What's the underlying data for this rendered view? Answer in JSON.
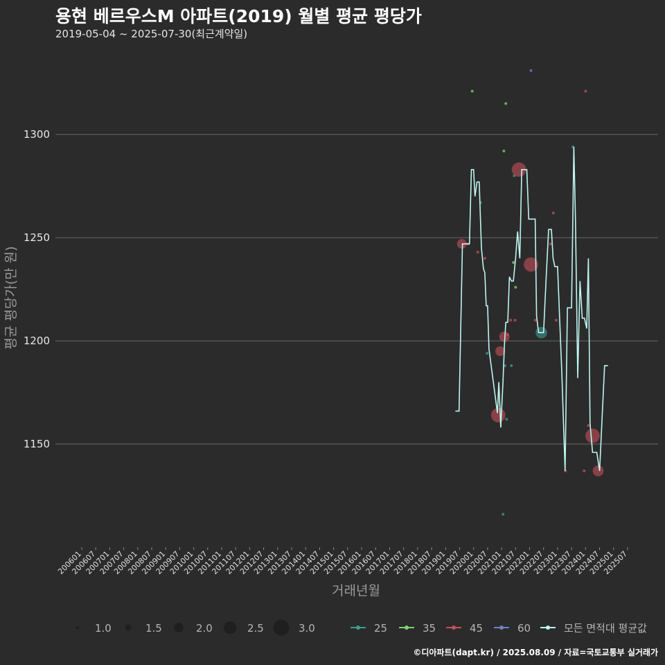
{
  "title": "용현 베르우스M 아파트(2019) 월별 평균 평당가",
  "subtitle": "2019-05-04 ~ 2025-07-30(최근계약일)",
  "footer": "©디아파트(dapt.kr) / 2025.08.09 / 자료=국토교통부 실거래가",
  "colors": {
    "background": "#2b2b2b",
    "grid": "#6a6a6a",
    "avg_line": "#bff5f0",
    "s25": "#3d9c94",
    "s35": "#7ed36f",
    "s45": "#c5505a",
    "s60": "#6f82c0"
  },
  "chart_data": {
    "type": "line+scatter",
    "title": "용현 베르우스M 아파트(2019) 월별 평균 평당가",
    "xlabel": "거래년월",
    "ylabel": "평균 평당가(만 원)",
    "ylim": [
      1100,
      1340
    ],
    "y_ticks": [
      1150,
      1200,
      1250,
      1300
    ],
    "x_range": [
      2006.0,
      2025.6
    ],
    "x_tick_labels": [
      "200601",
      "200607",
      "200701",
      "200707",
      "200801",
      "200807",
      "200901",
      "200907",
      "201001",
      "201007",
      "201101",
      "201107",
      "201201",
      "201207",
      "201301",
      "201307",
      "201401",
      "201407",
      "201501",
      "201507",
      "201601",
      "201607",
      "201701",
      "201707",
      "201801",
      "201807",
      "201901",
      "201907",
      "202001",
      "202007",
      "202101",
      "202107",
      "202201",
      "202207",
      "202301",
      "202307",
      "202401",
      "202407",
      "202501",
      "202507"
    ],
    "size_legend": [
      {
        "label": "1.0",
        "value": 1.0
      },
      {
        "label": "1.5",
        "value": 1.5
      },
      {
        "label": "2.0",
        "value": 2.0
      },
      {
        "label": "2.5",
        "value": 2.5
      },
      {
        "label": "3.0",
        "value": 3.0
      }
    ],
    "color_legend": [
      {
        "label": "25",
        "key": "s25"
      },
      {
        "label": "35",
        "key": "s35"
      },
      {
        "label": "45",
        "key": "s45"
      },
      {
        "label": "60",
        "key": "s60"
      },
      {
        "label": "모든 면적대 평균값",
        "key": "avg_line"
      }
    ],
    "avg_line": [
      [
        2019.35,
        1166
      ],
      [
        2019.48,
        1166
      ],
      [
        2019.6,
        1247
      ],
      [
        2019.85,
        1247
      ],
      [
        2019.92,
        1283
      ],
      [
        2020.0,
        1283
      ],
      [
        2020.05,
        1270
      ],
      [
        2020.12,
        1277
      ],
      [
        2020.2,
        1277
      ],
      [
        2020.28,
        1245
      ],
      [
        2020.35,
        1235
      ],
      [
        2020.4,
        1233
      ],
      [
        2020.45,
        1217
      ],
      [
        2020.5,
        1217
      ],
      [
        2020.55,
        1196
      ],
      [
        2020.85,
        1165
      ],
      [
        2020.9,
        1180
      ],
      [
        2020.97,
        1158
      ],
      [
        2021.05,
        1180
      ],
      [
        2021.1,
        1198
      ],
      [
        2021.15,
        1209
      ],
      [
        2021.22,
        1209
      ],
      [
        2021.28,
        1231
      ],
      [
        2021.35,
        1229
      ],
      [
        2021.42,
        1229
      ],
      [
        2021.5,
        1240
      ],
      [
        2021.57,
        1253
      ],
      [
        2021.65,
        1240
      ],
      [
        2021.72,
        1283
      ],
      [
        2021.9,
        1283
      ],
      [
        2021.97,
        1259
      ],
      [
        2022.2,
        1259
      ],
      [
        2022.25,
        1212
      ],
      [
        2022.32,
        1204
      ],
      [
        2022.5,
        1204
      ],
      [
        2022.6,
        1233
      ],
      [
        2022.68,
        1254
      ],
      [
        2022.78,
        1254
      ],
      [
        2022.84,
        1240
      ],
      [
        2022.9,
        1236
      ],
      [
        2023.0,
        1236
      ],
      [
        2023.15,
        1185
      ],
      [
        2023.27,
        1137
      ],
      [
        2023.35,
        1216
      ],
      [
        2023.5,
        1216
      ],
      [
        2023.58,
        1294
      ],
      [
        2023.64,
        1258
      ],
      [
        2023.72,
        1182
      ],
      [
        2023.8,
        1229
      ],
      [
        2023.88,
        1211
      ],
      [
        2023.96,
        1211
      ],
      [
        2024.04,
        1206
      ],
      [
        2024.1,
        1240
      ],
      [
        2024.16,
        1160
      ],
      [
        2024.25,
        1146
      ],
      [
        2024.4,
        1146
      ],
      [
        2024.5,
        1137
      ],
      [
        2024.58,
        1160
      ],
      [
        2024.68,
        1188
      ],
      [
        2024.8,
        1188
      ]
    ],
    "points": [
      {
        "x": 2019.58,
        "y": 1247,
        "size": 2.2,
        "series": "s45"
      },
      {
        "x": 2019.8,
        "y": 1247,
        "size": 1.0,
        "series": "s45"
      },
      {
        "x": 2019.95,
        "y": 1321,
        "size": 1.0,
        "series": "s35"
      },
      {
        "x": 2020.15,
        "y": 1243,
        "size": 1.0,
        "series": "s45"
      },
      {
        "x": 2020.25,
        "y": 1267,
        "size": 1.0,
        "series": "s25"
      },
      {
        "x": 2020.4,
        "y": 1240,
        "size": 1.0,
        "series": "s45"
      },
      {
        "x": 2020.48,
        "y": 1194,
        "size": 1.0,
        "series": "s25"
      },
      {
        "x": 2020.88,
        "y": 1164,
        "size": 3.0,
        "series": "s45"
      },
      {
        "x": 2020.95,
        "y": 1195,
        "size": 2.2,
        "series": "s45"
      },
      {
        "x": 2021.05,
        "y": 1116,
        "size": 1.0,
        "series": "s25"
      },
      {
        "x": 2021.1,
        "y": 1202,
        "size": 2.3,
        "series": "s45"
      },
      {
        "x": 2021.08,
        "y": 1292,
        "size": 1.0,
        "series": "s35"
      },
      {
        "x": 2021.12,
        "y": 1188,
        "size": 1.0,
        "series": "s25"
      },
      {
        "x": 2021.15,
        "y": 1315,
        "size": 1.0,
        "series": "s35"
      },
      {
        "x": 2021.18,
        "y": 1162,
        "size": 1.0,
        "series": "s25"
      },
      {
        "x": 2021.22,
        "y": 1203,
        "size": 1.0,
        "series": "s45"
      },
      {
        "x": 2021.32,
        "y": 1210,
        "size": 1.0,
        "series": "s45"
      },
      {
        "x": 2021.35,
        "y": 1188,
        "size": 1.0,
        "series": "s25"
      },
      {
        "x": 2021.42,
        "y": 1238,
        "size": 1.0,
        "series": "s35"
      },
      {
        "x": 2021.45,
        "y": 1280,
        "size": 1.0,
        "series": "s25"
      },
      {
        "x": 2021.5,
        "y": 1226,
        "size": 1.0,
        "series": "s35"
      },
      {
        "x": 2021.48,
        "y": 1210,
        "size": 1.0,
        "series": "s45"
      },
      {
        "x": 2021.62,
        "y": 1283,
        "size": 3.0,
        "series": "s45"
      },
      {
        "x": 2022.05,
        "y": 1237,
        "size": 3.0,
        "series": "s45"
      },
      {
        "x": 2022.05,
        "y": 1331,
        "size": 1.0,
        "series": "s60"
      },
      {
        "x": 2022.2,
        "y": 1210,
        "size": 1.0,
        "series": "s45"
      },
      {
        "x": 2022.42,
        "y": 1204,
        "size": 2.5,
        "series": "s25"
      },
      {
        "x": 2022.75,
        "y": 1247,
        "size": 1.0,
        "series": "s45"
      },
      {
        "x": 2022.85,
        "y": 1262,
        "size": 1.0,
        "series": "s45"
      },
      {
        "x": 2022.95,
        "y": 1210,
        "size": 1.0,
        "series": "s45"
      },
      {
        "x": 2023.28,
        "y": 1137,
        "size": 1.0,
        "series": "s45"
      },
      {
        "x": 2023.55,
        "y": 1294,
        "size": 1.0,
        "series": "s25"
      },
      {
        "x": 2023.95,
        "y": 1137,
        "size": 1.0,
        "series": "s45"
      },
      {
        "x": 2024.0,
        "y": 1321,
        "size": 1.0,
        "series": "s45"
      },
      {
        "x": 2024.1,
        "y": 1159,
        "size": 1.0,
        "series": "s45"
      },
      {
        "x": 2024.25,
        "y": 1154,
        "size": 3.0,
        "series": "s45"
      },
      {
        "x": 2024.45,
        "y": 1137,
        "size": 2.4,
        "series": "s45"
      }
    ]
  }
}
